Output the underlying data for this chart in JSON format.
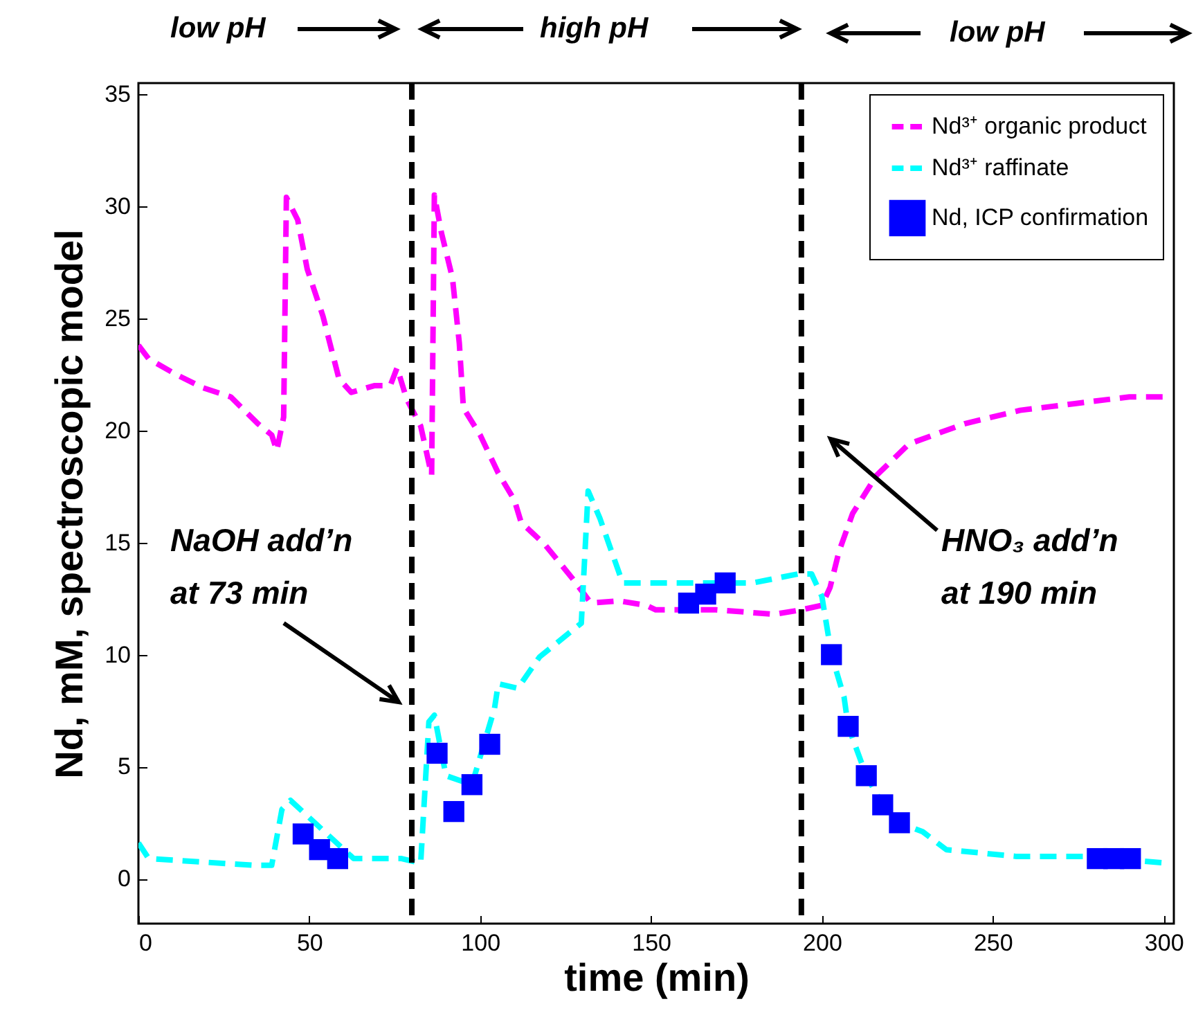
{
  "chart_data": {
    "type": "line",
    "xlabel": "time (min)",
    "ylabel": "Nd, mM, spectroscopic model",
    "xlim": [
      0,
      303
    ],
    "ylim": [
      -2,
      35.5
    ],
    "xticks": [
      0,
      50,
      100,
      150,
      200,
      250,
      300
    ],
    "yticks": [
      0,
      5,
      10,
      15,
      20,
      25,
      30,
      35
    ],
    "grid": false,
    "legend": "top right",
    "line_style": "dashed",
    "series": [
      {
        "name": "Nd³⁺ organic product",
        "type": "line",
        "color": "#ff00ff",
        "x": [
          0,
          3,
          11,
          19,
          27,
          31,
          35,
          39,
          40.5,
          42.5,
          43.3,
          46.6,
          49.4,
          54,
          58.7,
          62.3,
          69,
          73.7,
          75.7,
          78.5,
          82.6,
          85.8,
          86.6,
          88.7,
          91.9,
          93.9,
          95.1,
          100,
          105.3,
          110,
          112,
          119,
          127,
          132.4,
          140.5,
          148.6,
          151.4,
          169,
          186,
          194,
          200,
          202.4,
          205,
          209,
          216,
          225.5,
          241.7,
          258,
          274,
          290,
          301
        ],
        "values": [
          23.8,
          23.2,
          22.5,
          21.9,
          21.5,
          20.9,
          20.3,
          19.8,
          19.1,
          20.6,
          30.4,
          29.4,
          27.2,
          25.1,
          22.3,
          21.7,
          22,
          22,
          22.8,
          21.4,
          20.2,
          18,
          30.5,
          28.8,
          26.8,
          23.9,
          21,
          19.8,
          18.1,
          16.9,
          15.9,
          14.9,
          13.4,
          12.3,
          12.4,
          12.2,
          12,
          12,
          11.8,
          12,
          12.2,
          13,
          14.6,
          16.3,
          18,
          19.4,
          20.3,
          20.9,
          21.2,
          21.5,
          21.5
        ]
      },
      {
        "name": "Nd³⁺ raffinate",
        "type": "line",
        "color": "#00ffff",
        "x": [
          0,
          3,
          34,
          39,
          42,
          44.5,
          63,
          77,
          82.6,
          85,
          86.6,
          90,
          97.6,
          104.2,
          105.3,
          111,
          117.4,
          125.5,
          129.6,
          131.6,
          135,
          141.7,
          151.4,
          179.8,
          193,
          197,
          200,
          202.8,
          206.5,
          207.7,
          213,
          217.8,
          222.7,
          229.5,
          236.4,
          256.7,
          277,
          301
        ],
        "values": [
          1.6,
          0.9,
          0.6,
          0.6,
          3.1,
          3.5,
          0.9,
          0.9,
          0.7,
          7,
          7.3,
          4.6,
          4.2,
          7.6,
          8.7,
          8.5,
          9.9,
          10.9,
          11.4,
          17.3,
          16.1,
          13.2,
          13.2,
          13.2,
          13.6,
          13.6,
          12.6,
          10,
          8.1,
          6.8,
          4.6,
          3.3,
          2.5,
          2.1,
          1.3,
          1,
          1,
          0.7
        ]
      },
      {
        "name": "Nd, ICP confirmation",
        "type": "scatter",
        "marker": "square",
        "color": "#0000ff",
        "x": [
          48.2,
          53,
          58.3,
          87.4,
          92.3,
          97.6,
          102.8,
          161,
          166,
          171.7,
          202.8,
          207.7,
          213,
          217.8,
          222.7,
          280.6,
          285.4,
          290.3
        ],
        "values": [
          2,
          1.3,
          0.9,
          5.6,
          3,
          4.2,
          6,
          12.3,
          12.7,
          13.2,
          10,
          6.8,
          4.6,
          3.3,
          2.5,
          0.9,
          0.9,
          0.9
        ]
      }
    ],
    "ref_lines": [
      {
        "axis": "x",
        "value": 80,
        "color": "#000000",
        "line_style": "dashed"
      },
      {
        "axis": "x",
        "value": 194,
        "color": "#000000",
        "line_style": "dashed"
      }
    ],
    "annotations": [
      "low pH",
      "high pH",
      "low pH",
      "NaOH add’n at 73 min",
      "HNO₃ add’n at 190 min"
    ]
  }
}
